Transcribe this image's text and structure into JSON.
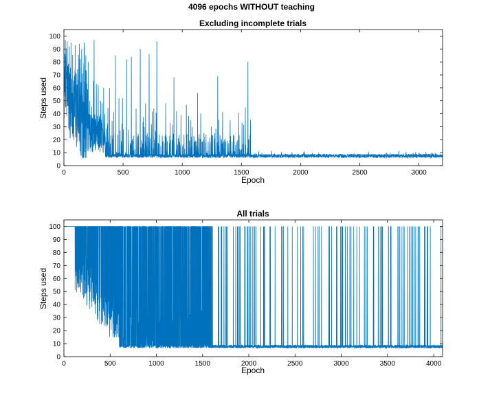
{
  "figure": {
    "suptitle": "4096 epochs WITHOUT teaching"
  },
  "colors": {
    "line": "#0072bd",
    "axes": "#000000",
    "background": "#ffffff"
  },
  "chart_data": [
    {
      "type": "line",
      "title": "Excluding incomplete trials",
      "xlabel": "Epoch",
      "ylabel": "Steps used",
      "xlim": [
        0,
        3200
      ],
      "ylim": [
        0,
        105
      ],
      "xticks": [
        0,
        500,
        1000,
        1500,
        2000,
        2500,
        3000
      ],
      "yticks": [
        0,
        10,
        20,
        30,
        40,
        50,
        60,
        70,
        80,
        90,
        100
      ],
      "grid": false,
      "legend": "none",
      "description_of_series": "noisy decay from about 60 toward 7 steps with spikes up to 97",
      "n_points": 3200,
      "baseline": 7,
      "spikes": [
        [
          12,
          97
        ],
        [
          28,
          96
        ],
        [
          45,
          92
        ],
        [
          60,
          95
        ],
        [
          95,
          93
        ],
        [
          130,
          94
        ],
        [
          150,
          90
        ],
        [
          172,
          95
        ],
        [
          185,
          85
        ],
        [
          205,
          80
        ],
        [
          255,
          97
        ],
        [
          290,
          62
        ],
        [
          310,
          50
        ],
        [
          345,
          40
        ],
        [
          385,
          60
        ],
        [
          435,
          85
        ],
        [
          465,
          52
        ],
        [
          495,
          52
        ],
        [
          530,
          82
        ],
        [
          570,
          84
        ],
        [
          610,
          44
        ],
        [
          645,
          90
        ],
        [
          690,
          48
        ],
        [
          720,
          86
        ],
        [
          760,
          44
        ],
        [
          785,
          96
        ],
        [
          860,
          48
        ],
        [
          930,
          68
        ],
        [
          1035,
          47
        ],
        [
          1130,
          56
        ],
        [
          1245,
          30
        ],
        [
          1300,
          69
        ],
        [
          1405,
          35
        ],
        [
          1505,
          33
        ],
        [
          1555,
          80
        ]
      ]
    },
    {
      "type": "line",
      "title": "All trials",
      "xlabel": "Epoch",
      "ylabel": "Steps used",
      "xlim": [
        0,
        4096
      ],
      "ylim": [
        0,
        105
      ],
      "xticks": [
        0,
        500,
        1000,
        1500,
        2000,
        2500,
        3000,
        3500,
        4000
      ],
      "yticks": [
        0,
        10,
        20,
        30,
        40,
        50,
        60,
        70,
        80,
        90,
        100
      ],
      "grid": false,
      "legend": "none",
      "description_of_series": "mostly 100 (incomplete) until ~120 epochs, then dense alternation between ~7 and 100, sparser after ~1600",
      "n_points": 4096,
      "baseline": 7,
      "max_value": 100
    }
  ]
}
